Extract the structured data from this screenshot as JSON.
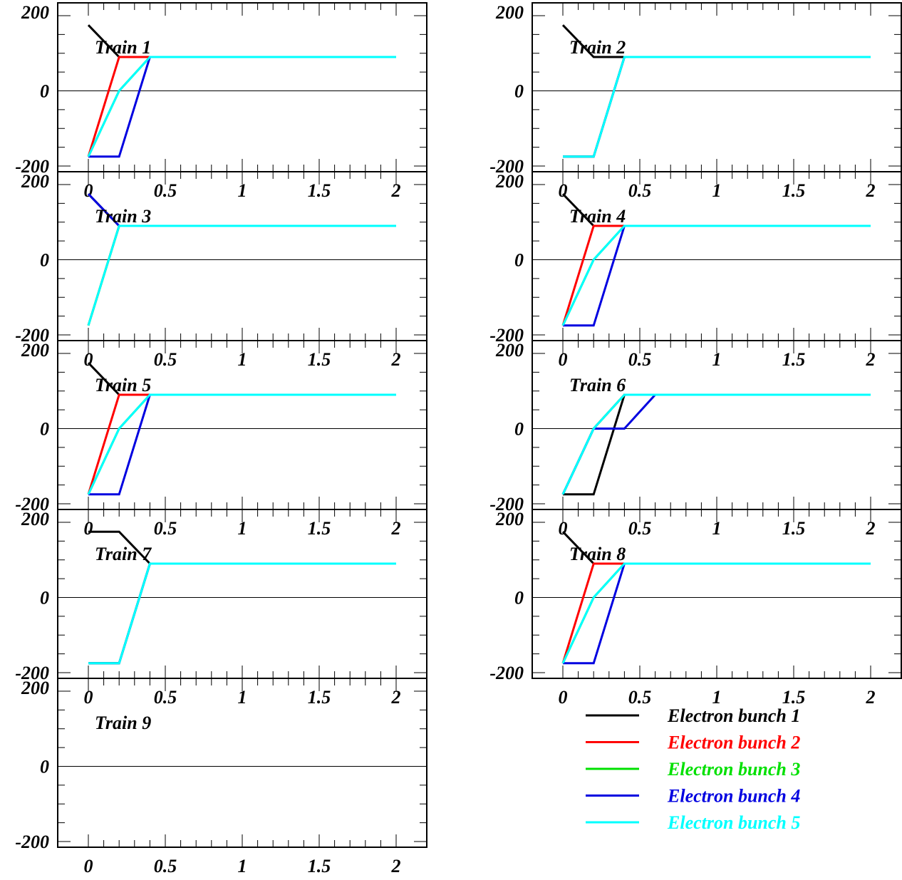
{
  "chart_data": {
    "type": "line",
    "layout": "grid of 9 panels, 2 columns",
    "xlim": [
      0,
      2
    ],
    "ylim": [
      -200,
      200
    ],
    "x_ticks": [
      "0",
      "0.5",
      "1",
      "1.5",
      "2"
    ],
    "y_ticks": [
      "200",
      "0",
      "-200"
    ],
    "series_names": [
      "Electron bunch 1",
      "Electron bunch 2",
      "Electron bunch 3",
      "Electron bunch 4",
      "Electron bunch 5"
    ],
    "series_colors": [
      "#000000",
      "#ff0000",
      "#00e000",
      "#0000e0",
      "#00ffff"
    ],
    "panels": [
      {
        "label": "Train 1",
        "series": [
          {
            "name": "Electron bunch 1",
            "points": [
              [
                0,
                175
              ],
              [
                0.2,
                90
              ],
              [
                2,
                90
              ]
            ]
          },
          {
            "name": "Electron bunch 2",
            "points": [
              [
                0,
                -175
              ],
              [
                0.2,
                90
              ],
              [
                2,
                90
              ]
            ]
          },
          {
            "name": "Electron bunch 3",
            "points": [
              [
                0,
                -175
              ],
              [
                0.2,
                0
              ],
              [
                0.4,
                90
              ],
              [
                2,
                90
              ]
            ]
          },
          {
            "name": "Electron bunch 4",
            "points": [
              [
                0,
                -175
              ],
              [
                0.2,
                -175
              ],
              [
                0.4,
                90
              ],
              [
                2,
                90
              ]
            ]
          },
          {
            "name": "Electron bunch 5",
            "points": [
              [
                0,
                -175
              ],
              [
                0.2,
                0
              ],
              [
                0.4,
                90
              ],
              [
                2,
                90
              ]
            ]
          }
        ]
      },
      {
        "label": "Train 2",
        "series": [
          {
            "name": "Electron bunch 1",
            "points": [
              [
                0,
                175
              ],
              [
                0.2,
                90
              ],
              [
                2,
                90
              ]
            ]
          },
          {
            "name": "Electron bunch 2",
            "points": [
              [
                0,
                -175
              ],
              [
                0.2,
                -175
              ],
              [
                0.4,
                90
              ],
              [
                2,
                90
              ]
            ]
          },
          {
            "name": "Electron bunch 3",
            "points": [
              [
                0,
                -175
              ],
              [
                0.2,
                -175
              ],
              [
                0.4,
                90
              ],
              [
                2,
                90
              ]
            ]
          },
          {
            "name": "Electron bunch 4",
            "points": [
              [
                0,
                -175
              ],
              [
                0.2,
                -175
              ],
              [
                0.4,
                90
              ],
              [
                2,
                90
              ]
            ]
          },
          {
            "name": "Electron bunch 5",
            "points": [
              [
                0,
                -175
              ],
              [
                0.2,
                -175
              ],
              [
                0.4,
                90
              ],
              [
                2,
                90
              ]
            ]
          }
        ]
      },
      {
        "label": "Train 3",
        "series": [
          {
            "name": "Electron bunch 1",
            "points": [
              [
                0,
                175
              ],
              [
                0.2,
                90
              ],
              [
                2,
                90
              ]
            ]
          },
          {
            "name": "Electron bunch 2",
            "points": [
              [
                0,
                -175
              ],
              [
                0.2,
                90
              ],
              [
                2,
                90
              ]
            ]
          },
          {
            "name": "Electron bunch 3",
            "points": [
              [
                0,
                -175
              ],
              [
                0.2,
                90
              ],
              [
                2,
                90
              ]
            ]
          },
          {
            "name": "Electron bunch 4",
            "points": [
              [
                0,
                175
              ],
              [
                0.2,
                90
              ],
              [
                2,
                90
              ]
            ]
          },
          {
            "name": "Electron bunch 5",
            "points": [
              [
                0,
                -175
              ],
              [
                0.2,
                90
              ],
              [
                2,
                90
              ]
            ]
          }
        ]
      },
      {
        "label": "Train 4",
        "series": [
          {
            "name": "Electron bunch 1",
            "points": [
              [
                0,
                175
              ],
              [
                0.2,
                90
              ],
              [
                2,
                90
              ]
            ]
          },
          {
            "name": "Electron bunch 2",
            "points": [
              [
                0,
                -175
              ],
              [
                0.2,
                90
              ],
              [
                2,
                90
              ]
            ]
          },
          {
            "name": "Electron bunch 3",
            "points": [
              [
                0,
                -175
              ],
              [
                0.2,
                0
              ],
              [
                0.4,
                90
              ],
              [
                2,
                90
              ]
            ]
          },
          {
            "name": "Electron bunch 4",
            "points": [
              [
                0,
                -175
              ],
              [
                0.2,
                -175
              ],
              [
                0.4,
                90
              ],
              [
                2,
                90
              ]
            ]
          },
          {
            "name": "Electron bunch 5",
            "points": [
              [
                0,
                -175
              ],
              [
                0.2,
                0
              ],
              [
                0.4,
                90
              ],
              [
                2,
                90
              ]
            ]
          }
        ]
      },
      {
        "label": "Train 5",
        "series": [
          {
            "name": "Electron bunch 1",
            "points": [
              [
                0,
                175
              ],
              [
                0.2,
                90
              ],
              [
                2,
                90
              ]
            ]
          },
          {
            "name": "Electron bunch 2",
            "points": [
              [
                0,
                -175
              ],
              [
                0.2,
                90
              ],
              [
                2,
                90
              ]
            ]
          },
          {
            "name": "Electron bunch 3",
            "points": [
              [
                0,
                -175
              ],
              [
                0.2,
                0
              ],
              [
                0.4,
                90
              ],
              [
                2,
                90
              ]
            ]
          },
          {
            "name": "Electron bunch 4",
            "points": [
              [
                0,
                -175
              ],
              [
                0.2,
                -175
              ],
              [
                0.4,
                90
              ],
              [
                2,
                90
              ]
            ]
          },
          {
            "name": "Electron bunch 5",
            "points": [
              [
                0,
                -175
              ],
              [
                0.2,
                0
              ],
              [
                0.4,
                90
              ],
              [
                2,
                90
              ]
            ]
          }
        ]
      },
      {
        "label": "Train 6",
        "series": [
          {
            "name": "Electron bunch 1",
            "points": [
              [
                0,
                -175
              ],
              [
                0.2,
                -175
              ],
              [
                0.4,
                90
              ],
              [
                2,
                90
              ]
            ]
          },
          {
            "name": "Electron bunch 2",
            "points": [
              [
                0,
                -175
              ],
              [
                0.2,
                0
              ],
              [
                0.4,
                90
              ],
              [
                2,
                90
              ]
            ]
          },
          {
            "name": "Electron bunch 3",
            "points": [
              [
                0,
                -175
              ],
              [
                0.2,
                0
              ],
              [
                0.4,
                90
              ],
              [
                2,
                90
              ]
            ]
          },
          {
            "name": "Electron bunch 4",
            "points": [
              [
                0,
                -175
              ],
              [
                0.2,
                0
              ],
              [
                0.4,
                0
              ],
              [
                0.6,
                90
              ],
              [
                2,
                90
              ]
            ]
          },
          {
            "name": "Electron bunch 5",
            "points": [
              [
                0,
                -175
              ],
              [
                0.2,
                0
              ],
              [
                0.4,
                90
              ],
              [
                2,
                90
              ]
            ]
          }
        ]
      },
      {
        "label": "Train 7",
        "series": [
          {
            "name": "Electron bunch 1",
            "points": [
              [
                0,
                175
              ],
              [
                0.2,
                175
              ],
              [
                0.4,
                90
              ],
              [
                2,
                90
              ]
            ]
          },
          {
            "name": "Electron bunch 2",
            "points": [
              [
                0,
                -175
              ],
              [
                0.2,
                -175
              ],
              [
                0.4,
                90
              ],
              [
                2,
                90
              ]
            ]
          },
          {
            "name": "Electron bunch 3",
            "points": [
              [
                0,
                -175
              ],
              [
                0.2,
                -175
              ],
              [
                0.4,
                90
              ],
              [
                2,
                90
              ]
            ]
          },
          {
            "name": "Electron bunch 4",
            "points": [
              [
                0,
                -175
              ],
              [
                0.2,
                -175
              ],
              [
                0.4,
                90
              ],
              [
                2,
                90
              ]
            ]
          },
          {
            "name": "Electron bunch 5",
            "points": [
              [
                0,
                -175
              ],
              [
                0.2,
                -175
              ],
              [
                0.4,
                90
              ],
              [
                2,
                90
              ]
            ]
          }
        ]
      },
      {
        "label": "Train 8",
        "series": [
          {
            "name": "Electron bunch 1",
            "points": [
              [
                0,
                175
              ],
              [
                0.2,
                90
              ],
              [
                2,
                90
              ]
            ]
          },
          {
            "name": "Electron bunch 2",
            "points": [
              [
                0,
                -175
              ],
              [
                0.2,
                90
              ],
              [
                2,
                90
              ]
            ]
          },
          {
            "name": "Electron bunch 3",
            "points": [
              [
                0,
                -175
              ],
              [
                0.2,
                0
              ],
              [
                0.4,
                90
              ],
              [
                2,
                90
              ]
            ]
          },
          {
            "name": "Electron bunch 4",
            "points": [
              [
                0,
                -175
              ],
              [
                0.2,
                -175
              ],
              [
                0.4,
                90
              ],
              [
                2,
                90
              ]
            ]
          },
          {
            "name": "Electron bunch 5",
            "points": [
              [
                0,
                -175
              ],
              [
                0.2,
                0
              ],
              [
                0.4,
                90
              ],
              [
                2,
                90
              ]
            ]
          }
        ]
      },
      {
        "label": "Train 9",
        "series": []
      }
    ],
    "legend": {
      "placement": "bottom-right",
      "entries": [
        {
          "label": "Electron bunch 1",
          "color": "#000000"
        },
        {
          "label": "Electron bunch 2",
          "color": "#ff0000"
        },
        {
          "label": "Electron bunch 3",
          "color": "#00e000"
        },
        {
          "label": "Electron bunch 4",
          "color": "#0000e0"
        },
        {
          "label": "Electron bunch 5",
          "color": "#00ffff"
        }
      ]
    },
    "zero_line": true,
    "grid": false
  }
}
